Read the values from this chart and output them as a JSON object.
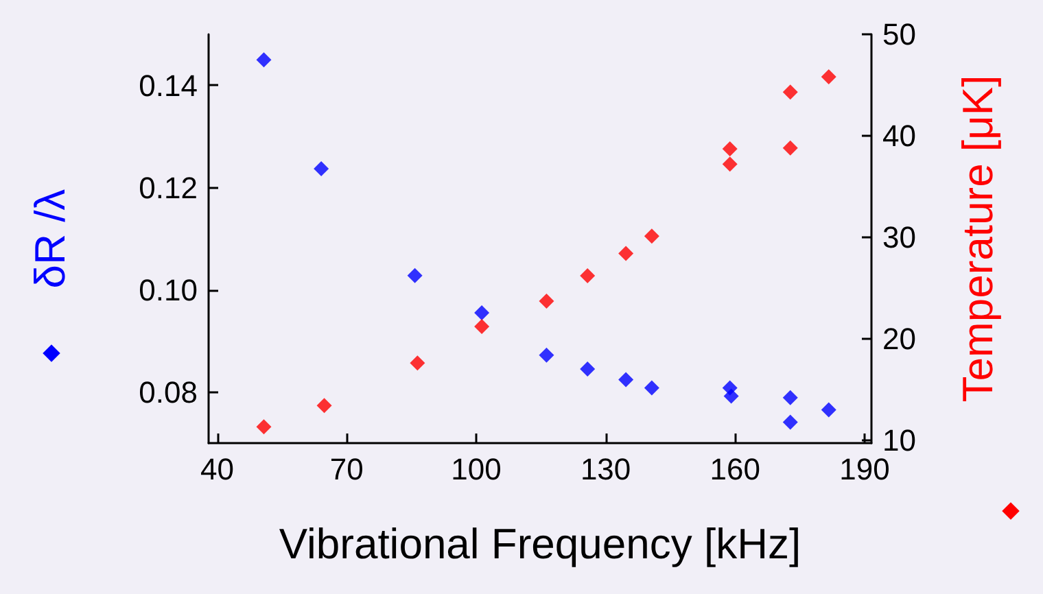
{
  "chart_data": {
    "type": "scatter",
    "xlabel": "Vibrational Frequency [kHz]",
    "ylabel": "δR /λ",
    "y2label": "Temperature [μK]",
    "series": [
      {
        "color": "#0000ff",
        "x": [
          50.8,
          64.1,
          85.8,
          101.3,
          116.3,
          125.8,
          134.7,
          140.7,
          158.8,
          159.1,
          172.8,
          172.8,
          181.7
        ],
        "values": [
          0.145,
          0.1237,
          0.1028,
          0.0955,
          0.0872,
          0.0845,
          0.0824,
          0.0808,
          0.0808,
          0.0792,
          0.0789,
          0.0741,
          0.0765
        ]
      },
      {
        "color": "#ff0000",
        "axis": "y2",
        "x": [
          50.8,
          64.8,
          86.4,
          101.3,
          116.3,
          125.8,
          134.7,
          140.7,
          158.8,
          158.8,
          172.8,
          172.8,
          181.7
        ],
        "values": [
          11.3,
          13.4,
          17.6,
          21.2,
          23.7,
          26.2,
          28.4,
          30.1,
          38.7,
          37.2,
          44.3,
          38.8,
          45.8
        ]
      }
    ],
    "xlim": [
      38,
      191.6
    ],
    "xticks": [
      40,
      70,
      100,
      130,
      160,
      190
    ],
    "ylim": [
      0.07,
      0.15
    ],
    "yticks": [
      {
        "value": 0.08,
        "label": "0.08"
      },
      {
        "value": 0.1,
        "label": "0.10"
      },
      {
        "value": 0.12,
        "label": "0.12"
      },
      {
        "value": 0.14,
        "label": "0.14"
      }
    ],
    "y2lim": [
      9.7,
      50
    ],
    "y2ticks": [
      10,
      20,
      30,
      40,
      50
    ],
    "marker": "diamond",
    "grid": false,
    "legend": false
  }
}
